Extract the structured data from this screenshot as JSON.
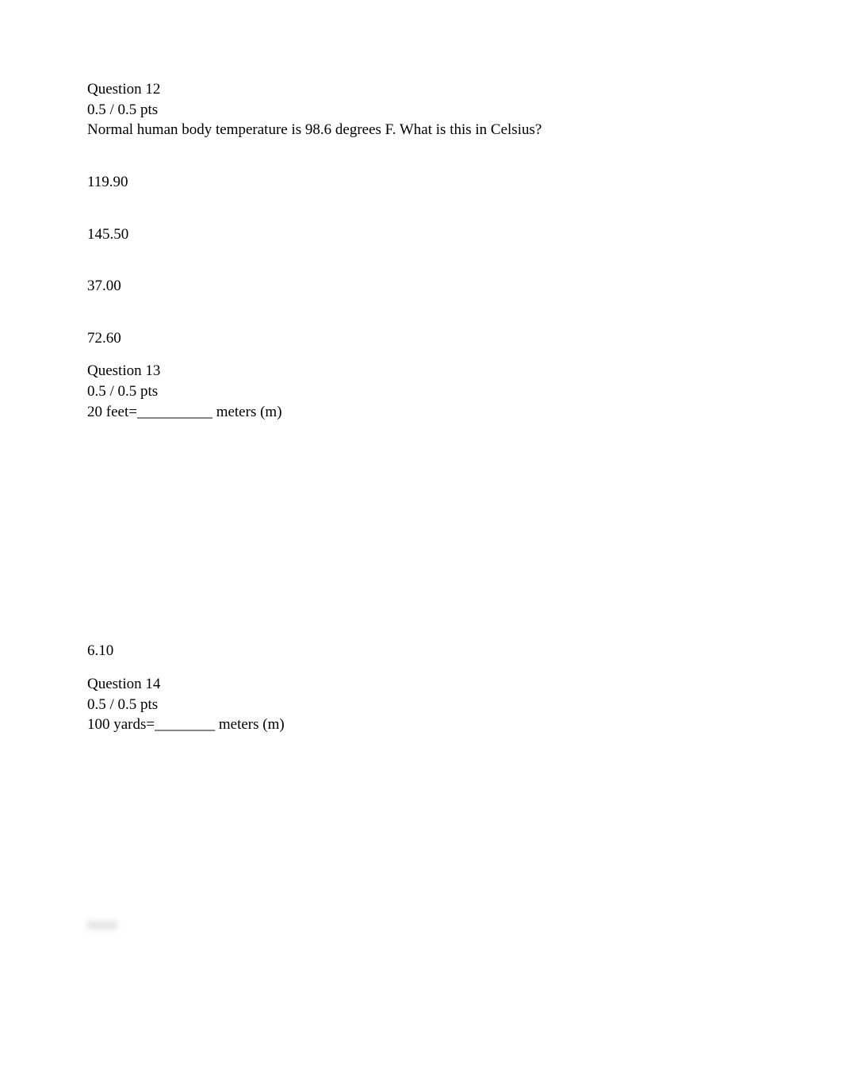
{
  "text_color": "#000000",
  "background_color": "#ffffff",
  "font_family": "Times New Roman",
  "base_font_size_pt": 14,
  "q12": {
    "title": "Question 12",
    "points": "0.5 / 0.5 pts",
    "prompt": "Normal human body temperature is 98.6 degrees F. What is this in Celsius?",
    "options": [
      {
        "label": "119.90"
      },
      {
        "label": "145.50"
      },
      {
        "label": "37.00"
      },
      {
        "label": "72.60"
      }
    ]
  },
  "q13": {
    "title": "Question 13",
    "points": "0.5 / 0.5 pts",
    "prompt": "20 feet=__________ meters (m)",
    "answer": "6.10"
  },
  "q14": {
    "title": "Question 14",
    "points": "0.5 / 0.5 pts",
    "prompt": "100 yards=________ meters (m)",
    "answer_blur": "xxxx"
  }
}
